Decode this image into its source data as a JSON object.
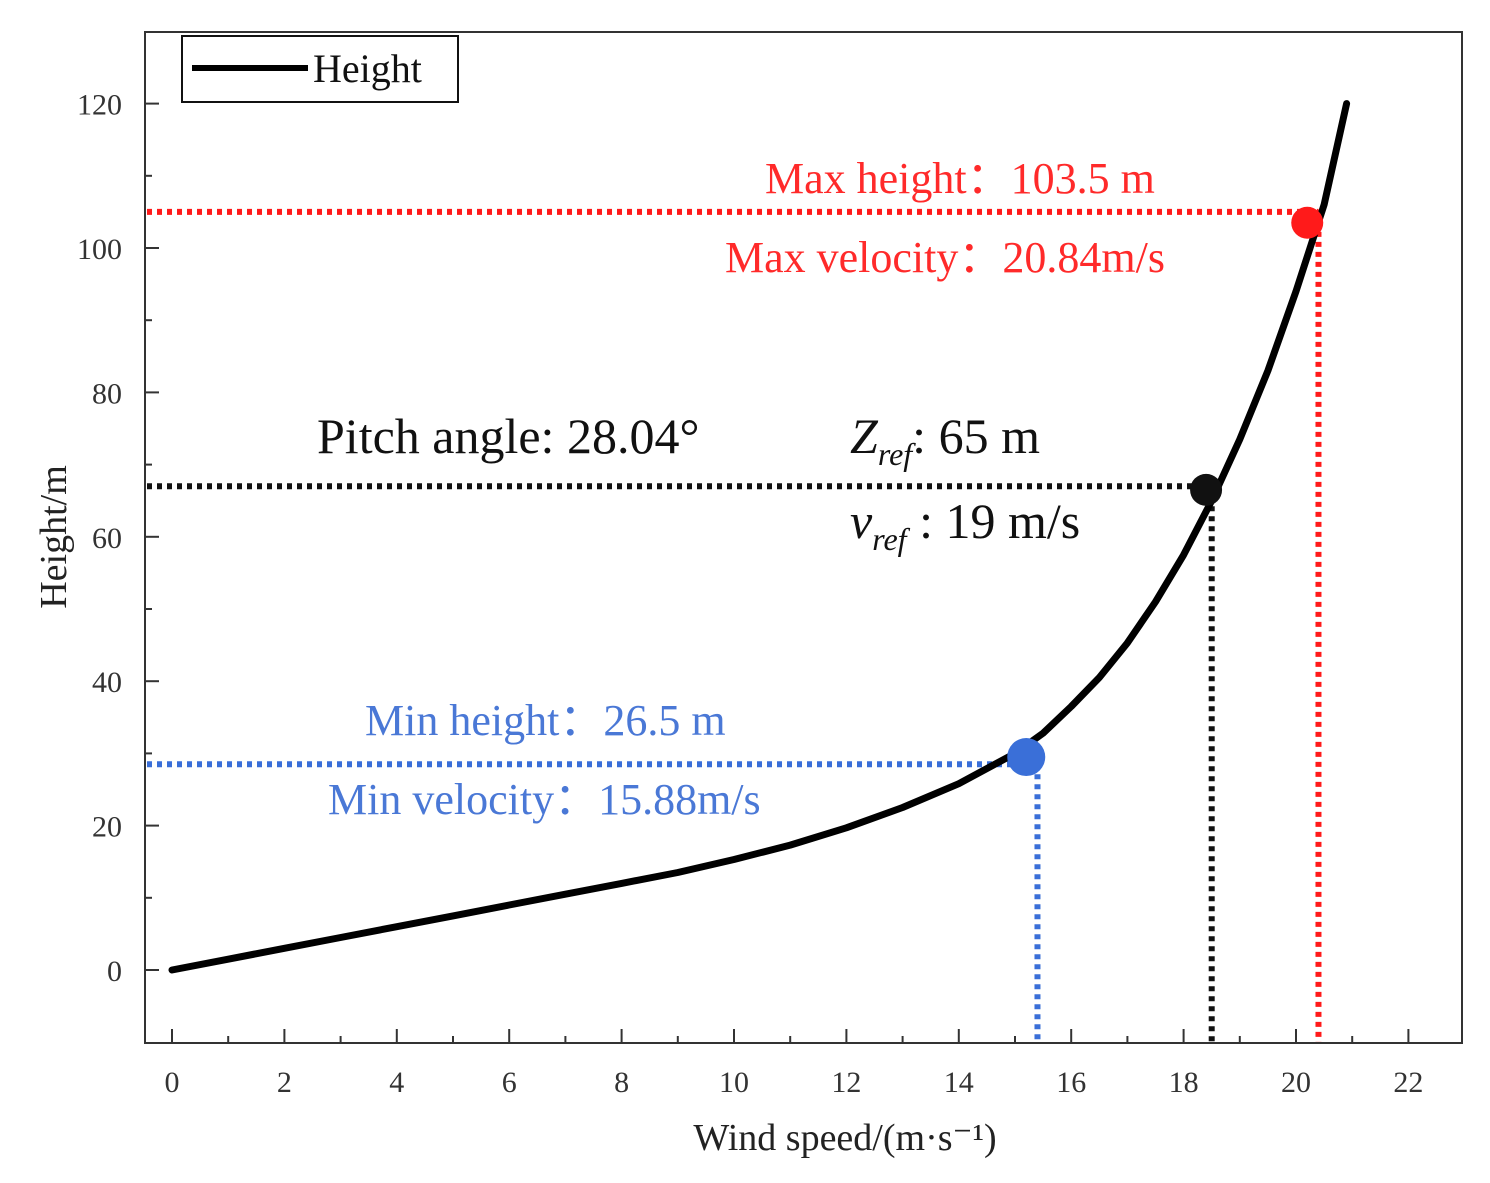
{
  "chart_data": {
    "type": "line",
    "title": "",
    "xlabel": "Wind speed/(m·s⁻¹)",
    "ylabel": "Height/m",
    "xlim": [
      -0.5,
      23
    ],
    "ylim": [
      -10,
      130
    ],
    "xticks": [
      0,
      2,
      4,
      6,
      8,
      10,
      12,
      14,
      16,
      18,
      20,
      22
    ],
    "xtick_labels": [
      "0",
      "2",
      "4",
      "6",
      "8",
      "10",
      "12",
      "14",
      "16",
      "18",
      "20",
      "22"
    ],
    "yticks": [
      0,
      20,
      40,
      60,
      80,
      100,
      120
    ],
    "ytick_labels": [
      "0",
      "20",
      "40",
      "60",
      "80",
      "100",
      "120"
    ],
    "grid": false,
    "legend": {
      "position": "top-left",
      "entries": [
        "Height"
      ]
    },
    "series": [
      {
        "name": "Height",
        "color": "#000000",
        "x": [
          0,
          1,
          2,
          3,
          4,
          5,
          6,
          7,
          8,
          9,
          10,
          11,
          12,
          13,
          14,
          15,
          15.5,
          16,
          16.5,
          17,
          17.5,
          18,
          18.5,
          19,
          19.5,
          20,
          20.5,
          20.9
        ],
        "y": [
          0,
          1.5,
          3,
          4.5,
          6,
          7.5,
          9,
          10.5,
          12,
          13.5,
          15.3,
          17.3,
          19.7,
          22.5,
          25.8,
          30,
          32.8,
          36.5,
          40.5,
          45.3,
          51,
          57.5,
          65,
          73.5,
          83,
          94,
          106,
          120
        ]
      }
    ],
    "markers": [
      {
        "name": "max",
        "x": 20.2,
        "y": 103.5,
        "color": "#ff1a1a"
      },
      {
        "name": "ref",
        "x": 18.4,
        "y": 66.5,
        "color": "#111111"
      },
      {
        "name": "min",
        "x": 15.2,
        "y": 29.5,
        "color": "#3a6fd8"
      }
    ],
    "reference_lines": [
      {
        "name": "max",
        "x": 20.4,
        "y": 105,
        "color": "#ff1a1a"
      },
      {
        "name": "ref",
        "x": 18.5,
        "y": 67,
        "color": "#111111"
      },
      {
        "name": "min",
        "x": 15.4,
        "y": 28.5,
        "color": "#3a6fd8"
      }
    ],
    "annotations": {
      "max_height": "Max height：103.5 m",
      "max_velocity": "Max velocity：20.84m/s",
      "pitch_angle": "Pitch angle: 28.04°",
      "zref_symbol": "Z",
      "zref_sub": "ref",
      "zref_value": ": 65 m",
      "vref_symbol": "v",
      "vref_sub": "ref",
      "vref_value": " : 19 m/s",
      "min_height": "Min height：26.5 m",
      "min_velocity": "Min velocity：15.88m/s"
    }
  }
}
